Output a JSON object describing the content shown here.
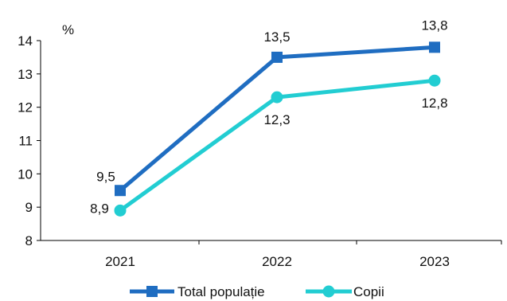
{
  "chart_data": {
    "type": "line",
    "categories": [
      "2021",
      "2022",
      "2023"
    ],
    "y_unit": "%",
    "ylim": [
      8,
      14
    ],
    "y_ticks": [
      8,
      9,
      10,
      11,
      12,
      13,
      14
    ],
    "grid": false,
    "legend_position": "bottom",
    "series": [
      {
        "name": "Total populație",
        "values": [
          9.5,
          13.5,
          13.8
        ],
        "labels": [
          "9,5",
          "13,5",
          "13,8"
        ],
        "color": "#1F6DC1",
        "marker": "square"
      },
      {
        "name": "Copii",
        "values": [
          8.9,
          12.3,
          12.8
        ],
        "labels": [
          "8,9",
          "12,3",
          "12,8"
        ],
        "color": "#22CDD2",
        "marker": "circle"
      }
    ]
  }
}
